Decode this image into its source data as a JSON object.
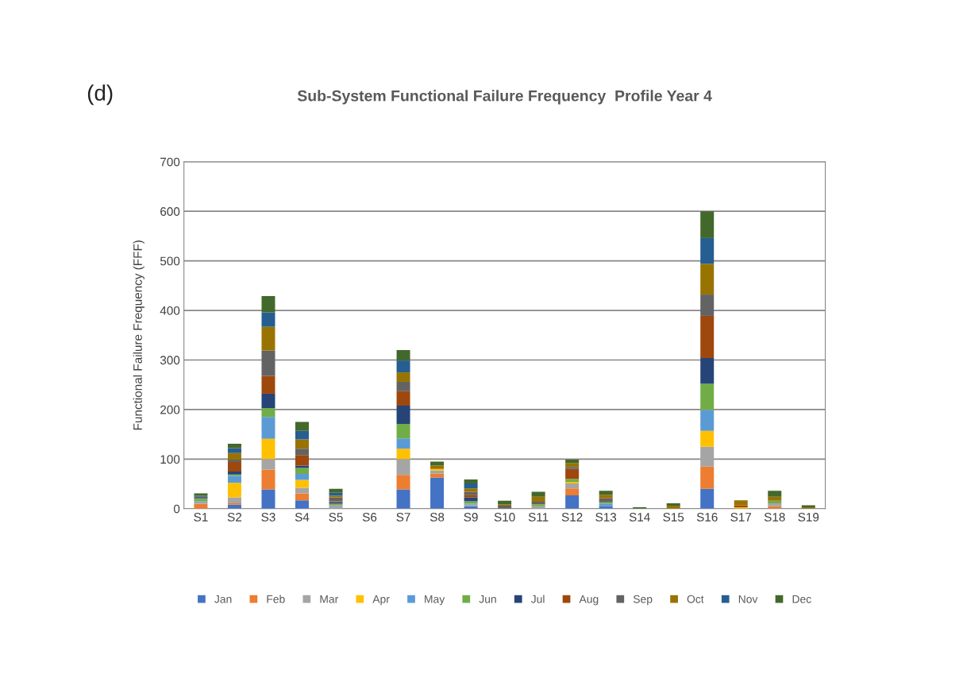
{
  "chart_data": {
    "type": "bar",
    "stacked": true,
    "title": "Sub-System Functional Failure Frequency  Profile Year 4",
    "ylabel": "Functional Failure Frequency (FFF)",
    "annotations": [
      "(d)"
    ],
    "categories": [
      "S1",
      "S2",
      "S3",
      "S4",
      "S5",
      "S6",
      "S7",
      "S8",
      "S9",
      "S10",
      "S11",
      "S12",
      "S13",
      "S14",
      "S15",
      "S16",
      "S17",
      "S18",
      "S19"
    ],
    "series": [
      {
        "name": "Jan",
        "color": "#4472c4",
        "values": [
          0,
          8,
          39,
          17,
          0,
          0,
          39,
          63,
          5,
          0,
          0,
          27,
          5,
          0,
          0,
          40,
          0,
          0,
          0
        ]
      },
      {
        "name": "Feb",
        "color": "#ed7d31",
        "values": [
          10,
          3,
          40,
          14,
          0,
          0,
          29,
          8,
          0,
          0,
          0,
          14,
          0,
          0,
          0,
          45,
          0,
          5,
          0
        ]
      },
      {
        "name": "Mar",
        "color": "#a5a5a5",
        "values": [
          3,
          12,
          21,
          11,
          5,
          0,
          32,
          6,
          3,
          null,
          5,
          10,
          0,
          0,
          null,
          40,
          0,
          6,
          0
        ]
      },
      {
        "name": "Apr",
        "color": "#ffc000",
        "values": [
          0,
          29,
          41,
          16,
          0,
          0,
          21,
          3,
          0,
          0,
          0,
          3,
          0,
          0,
          0,
          32,
          3,
          0,
          0
        ]
      },
      {
        "name": "May",
        "color": "#5b9bd5",
        "values": [
          2,
          14,
          44,
          12,
          2,
          0,
          21,
          0,
          2,
          0,
          0,
          0,
          5,
          0,
          0,
          42,
          0,
          0,
          0
        ]
      },
      {
        "name": "Jun",
        "color": "#70ad47",
        "values": [
          5,
          3,
          18,
          12,
          3,
          0,
          29,
          0,
          5,
          0,
          4,
          6,
          3,
          0,
          0,
          53,
          0,
          5,
          0
        ]
      },
      {
        "name": "Jul",
        "color": "#264478",
        "values": [
          0,
          6,
          29,
          5,
          3,
          0,
          37,
          0,
          8,
          0,
          0,
          0,
          0,
          0,
          0,
          52,
          0,
          0,
          0
        ]
      },
      {
        "name": "Aug",
        "color": "#9e480e",
        "values": [
          0,
          19,
          36,
          21,
          2,
          0,
          29,
          0,
          5,
          0,
          0,
          20,
          0,
          0,
          0,
          85,
          4,
          0,
          0
        ]
      },
      {
        "name": "Sep",
        "color": "#636363",
        "values": [
          4,
          5,
          51,
          13,
          8,
          0,
          19,
          0,
          6,
          6,
          5,
          4,
          8,
          0,
          0,
          43,
          0,
          0,
          0
        ]
      },
      {
        "name": "Oct",
        "color": "#997300",
        "values": [
          0,
          13,
          48,
          19,
          3,
          0,
          19,
          7,
          7,
          3,
          10,
          8,
          7,
          null,
          6,
          62,
          10,
          8,
          3
        ]
      },
      {
        "name": "Nov",
        "color": "#255e91",
        "values": [
          2,
          10,
          29,
          17,
          6,
          0,
          24,
          0,
          10,
          0,
          0,
          0,
          0,
          0,
          0,
          52,
          0,
          0,
          0
        ]
      },
      {
        "name": "Dec",
        "color": "#43682b",
        "values": [
          5,
          9,
          33,
          18,
          8,
          0,
          21,
          8,
          8,
          7,
          10,
          7,
          8,
          3,
          5,
          54,
          0,
          12,
          4
        ]
      }
    ],
    "ylim": [
      0,
      700
    ],
    "yticks": [
      0,
      100,
      200,
      300,
      400,
      500,
      600,
      700
    ],
    "grid": "y",
    "legend": "bottom"
  }
}
